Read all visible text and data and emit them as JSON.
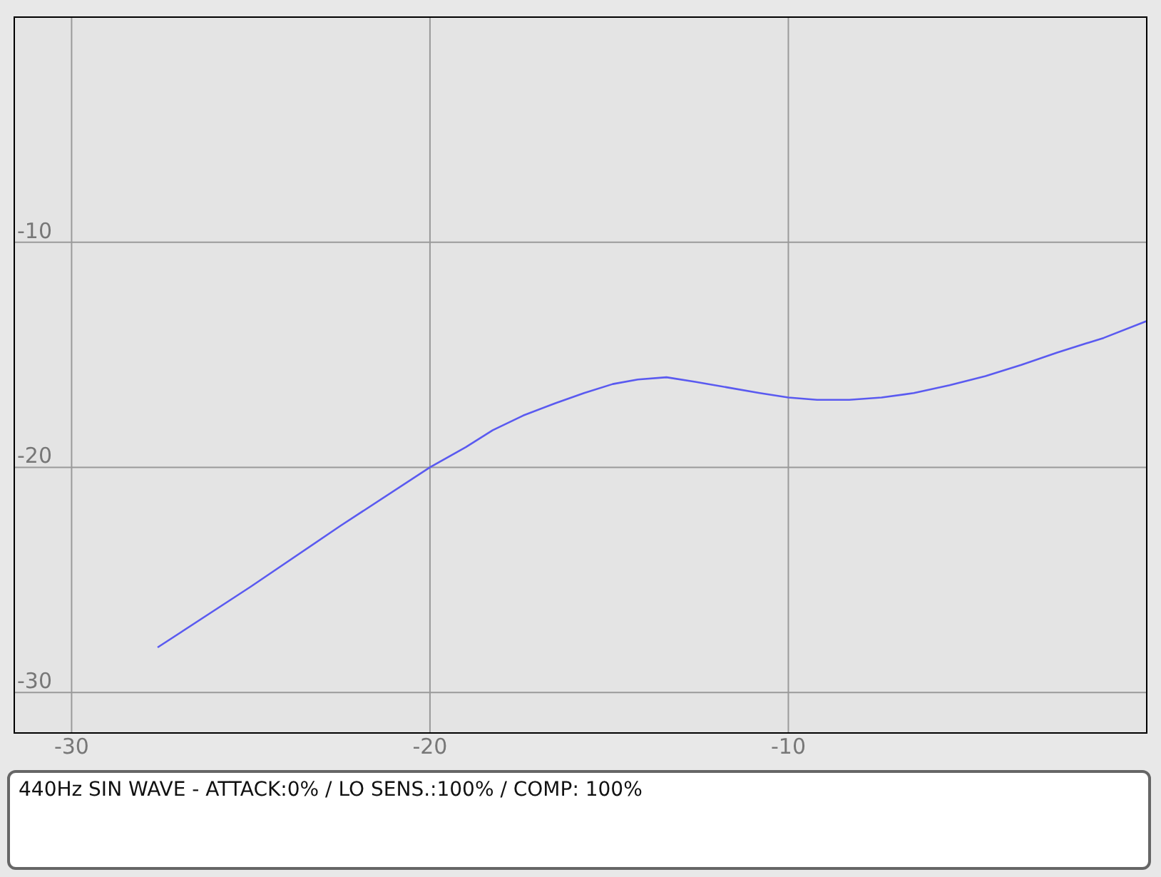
{
  "chart_data": {
    "type": "line",
    "x": [
      -27.6,
      -25,
      -22.5,
      -20,
      -19,
      -18.25,
      -17.4,
      -16.5,
      -15.7,
      -14.9,
      -14.2,
      -13.4,
      -12.6,
      -11.7,
      -10.8,
      -10,
      -9.2,
      -8.3,
      -7.4,
      -6.5,
      -5.5,
      -4.5,
      -3.5,
      -2.5,
      -1.2,
      0
    ],
    "series": [
      {
        "color": "#5a5af0",
        "values": [
          -28,
          -25.3,
          -22.6,
          -20,
          -19.1,
          -18.35,
          -17.7,
          -17.15,
          -16.7,
          -16.3,
          -16.1,
          -16,
          -16.2,
          -16.45,
          -16.7,
          -16.9,
          -17,
          -17,
          -16.9,
          -16.7,
          -16.35,
          -15.95,
          -15.45,
          -14.9,
          -14.25,
          -13.5
        ]
      }
    ],
    "xlim": [
      -31.6,
      0
    ],
    "ylim": [
      -31.8,
      0
    ],
    "xticks": [
      -30,
      -20,
      -10
    ],
    "yticks": [
      -30,
      -20,
      -10
    ],
    "grid": true,
    "marker": "none",
    "line_style": "solid",
    "annotations": [
      "440Hz SIN WAVE - ATTACK:0% / LO SENS.:100% / COMP: 100%"
    ]
  }
}
